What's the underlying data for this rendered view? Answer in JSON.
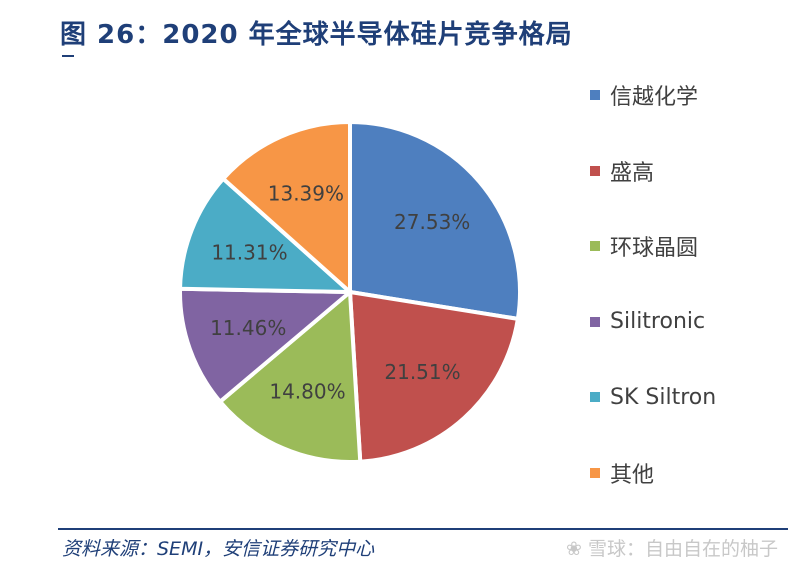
{
  "title": "图 26：2020 年全球半导体硅片竞争格局",
  "source": "资料来源：SEMI，安信证券研究中心",
  "watermark": "❀ 雪球：自由自在的柚子",
  "colors": {
    "title": "#1f3f78"
  },
  "chart_data": {
    "type": "pie",
    "categories": [
      "信越化学",
      "盛高",
      "环球晶圆",
      "Silitronic",
      "SK Siltron",
      "其他"
    ],
    "values": [
      27.53,
      21.51,
      14.8,
      11.46,
      11.31,
      13.39
    ],
    "value_labels": [
      "27.53%",
      "21.51%",
      "14.80%",
      "11.46%",
      "11.31%",
      "13.39%"
    ],
    "colors": [
      "#4e7fbf",
      "#c0504d",
      "#9bbb59",
      "#8064a2",
      "#4bacc6",
      "#f79646"
    ],
    "legend_position": "right"
  }
}
